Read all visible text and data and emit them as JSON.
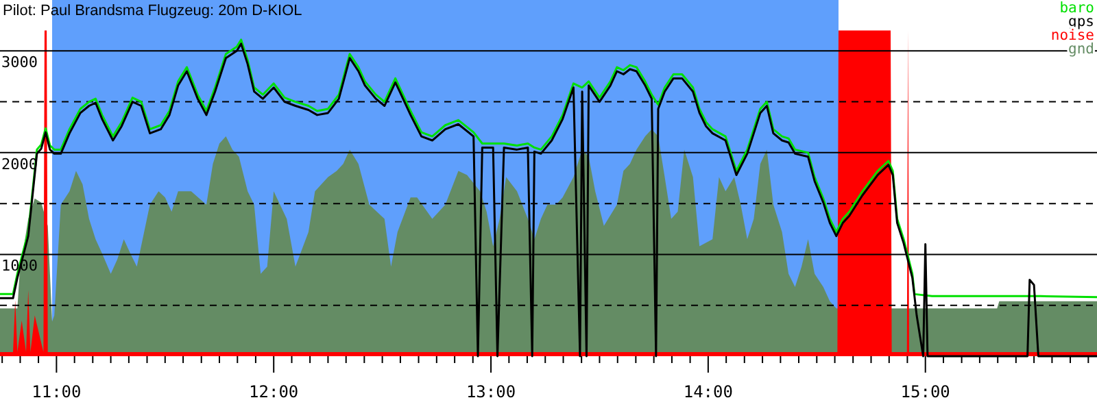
{
  "chart_data": {
    "type": "line",
    "title": "Pilot: Paul Brandsma Flugzeug: 20m D-KIOL",
    "x": [
      10.74,
      10.8,
      10.82,
      10.87,
      10.91,
      10.93,
      10.95,
      10.97,
      10.99,
      11.02,
      11.06,
      11.11,
      11.15,
      11.18,
      11.21,
      11.26,
      11.3,
      11.35,
      11.39,
      11.43,
      11.48,
      11.52,
      11.56,
      11.6,
      11.65,
      11.69,
      11.73,
      11.78,
      11.83,
      11.85,
      11.88,
      11.91,
      11.95,
      12.0,
      12.05,
      12.1,
      12.16,
      12.2,
      12.25,
      12.3,
      12.35,
      12.39,
      12.42,
      12.47,
      12.51,
      12.56,
      12.58,
      12.63,
      12.68,
      12.73,
      12.79,
      12.85,
      12.92,
      12.96,
      13.01,
      13.06,
      13.12,
      13.17,
      13.2,
      13.23,
      13.28,
      13.33,
      13.38,
      13.42,
      13.45,
      13.5,
      13.55,
      13.58,
      13.61,
      13.64,
      13.67,
      13.71,
      13.74,
      13.77,
      13.8,
      13.84,
      13.88,
      13.93,
      13.96,
      13.99,
      14.02,
      14.08,
      14.13,
      14.18,
      14.24,
      14.27,
      14.3,
      14.34,
      14.37,
      14.4,
      14.46,
      14.49,
      14.53,
      14.56,
      14.59,
      14.62,
      14.65,
      14.71,
      14.78,
      14.83,
      14.85,
      14.87,
      14.9,
      14.94,
      14.95,
      15.03,
      15.28,
      15.53,
      15.79
    ],
    "series": [
      {
        "name": "baro",
        "color": "#00e000",
        "values": [
          610,
          610,
          810,
          1220,
          2030,
          2080,
          2240,
          2070,
          2030,
          2030,
          2230,
          2430,
          2500,
          2530,
          2370,
          2160,
          2300,
          2540,
          2500,
          2230,
          2270,
          2410,
          2700,
          2840,
          2570,
          2410,
          2640,
          2970,
          3040,
          3110,
          2910,
          2640,
          2570,
          2680,
          2540,
          2500,
          2460,
          2410,
          2430,
          2570,
          2970,
          2840,
          2700,
          2570,
          2500,
          2730,
          2640,
          2410,
          2200,
          2160,
          2270,
          2320,
          2200,
          2090,
          2090,
          2090,
          2070,
          2090,
          2050,
          2030,
          2160,
          2370,
          2680,
          2640,
          2700,
          2540,
          2700,
          2840,
          2810,
          2860,
          2840,
          2700,
          2570,
          2470,
          2640,
          2770,
          2770,
          2640,
          2430,
          2300,
          2230,
          2160,
          1820,
          2030,
          2430,
          2500,
          2230,
          2160,
          2140,
          2030,
          2000,
          1760,
          1550,
          1350,
          1220,
          1350,
          1420,
          1620,
          1820,
          1920,
          1820,
          1350,
          1150,
          810,
          610,
          590,
          590,
          590,
          580
        ]
      },
      {
        "name": "gnd",
        "type": "area",
        "color": "#648c64",
        "x": [
          10.74,
          10.82,
          10.83,
          10.87,
          10.9,
          10.93,
          10.96,
          10.98,
          10.99,
          11.02,
          11.06,
          11.09,
          11.12,
          11.15,
          11.18,
          11.21,
          11.25,
          11.28,
          11.31,
          11.34,
          11.37,
          11.43,
          11.47,
          11.5,
          11.53,
          11.56,
          11.62,
          11.69,
          11.72,
          11.75,
          11.78,
          11.81,
          11.84,
          11.88,
          11.91,
          11.94,
          11.97,
          12.0,
          12.06,
          12.1,
          12.16,
          12.19,
          12.25,
          12.29,
          12.32,
          12.35,
          12.39,
          12.44,
          12.51,
          12.54,
          12.57,
          12.63,
          12.66,
          12.73,
          12.79,
          12.85,
          12.89,
          12.95,
          12.98,
          13.01,
          13.04,
          13.07,
          13.12,
          13.17,
          13.2,
          13.23,
          13.26,
          13.3,
          13.33,
          13.38,
          13.42,
          13.45,
          13.48,
          13.52,
          13.58,
          13.61,
          13.64,
          13.67,
          13.71,
          13.74,
          13.77,
          13.8,
          13.83,
          13.86,
          13.89,
          13.93,
          13.96,
          14.02,
          14.05,
          14.08,
          14.12,
          14.15,
          14.18,
          14.21,
          14.24,
          14.27,
          14.3,
          14.34,
          14.37,
          14.4,
          14.43,
          14.46,
          14.49,
          14.53,
          14.56,
          14.59,
          14.84,
          14.97,
          15.33,
          15.34,
          15.79
        ],
        "values": [
          470,
          470,
          810,
          1350,
          1550,
          1510,
          1280,
          340,
          400,
          1490,
          1620,
          1820,
          1690,
          1350,
          1150,
          1010,
          810,
          950,
          1150,
          1010,
          880,
          1490,
          1620,
          1560,
          1420,
          1620,
          1620,
          1490,
          1890,
          2090,
          2160,
          2030,
          1960,
          1620,
          1490,
          810,
          880,
          1620,
          1350,
          880,
          1220,
          1620,
          1760,
          1820,
          1890,
          2030,
          1890,
          1490,
          1350,
          880,
          1220,
          1560,
          1560,
          1350,
          1490,
          1820,
          1780,
          1620,
          1420,
          1080,
          1350,
          1760,
          1620,
          1350,
          1150,
          1350,
          1490,
          1490,
          1560,
          1760,
          2030,
          1960,
          1620,
          1280,
          1490,
          1820,
          1890,
          2030,
          2160,
          2230,
          2160,
          1760,
          1350,
          1420,
          2030,
          1760,
          1080,
          1150,
          1760,
          1620,
          1760,
          1490,
          1150,
          1350,
          1890,
          2030,
          1490,
          1220,
          810,
          680,
          880,
          1150,
          810,
          680,
          540,
          470,
          470,
          470,
          470,
          540,
          540
        ]
      },
      {
        "name": "noise",
        "type": "area",
        "color": "#ff0000",
        "x": [
          10.74,
          10.8,
          10.81,
          10.82,
          10.84,
          10.86,
          10.87,
          10.88,
          10.9,
          10.94,
          10.945,
          10.95,
          10.955,
          10.96,
          14.595,
          14.6,
          14.84,
          14.845,
          14.915,
          14.92,
          14.925,
          15.79
        ],
        "values": [
          40,
          40,
          550,
          40,
          350,
          40,
          650,
          40,
          400,
          40,
          3200,
          3200,
          3200,
          40,
          40,
          3200,
          3200,
          40,
          40,
          3200,
          40,
          40
        ]
      },
      {
        "name": "gps",
        "color": "#000000",
        "x": [
          10.74,
          10.8,
          10.82,
          10.87,
          10.91,
          10.93,
          10.95,
          10.97,
          10.99,
          11.02,
          11.06,
          11.11,
          11.15,
          11.18,
          11.21,
          11.26,
          11.3,
          11.35,
          11.39,
          11.43,
          11.48,
          11.52,
          11.56,
          11.6,
          11.65,
          11.69,
          11.73,
          11.78,
          11.83,
          11.85,
          11.88,
          11.91,
          11.95,
          12.0,
          12.05,
          12.1,
          12.16,
          12.2,
          12.25,
          12.3,
          12.35,
          12.39,
          12.42,
          12.47,
          12.51,
          12.56,
          12.58,
          12.63,
          12.68,
          12.73,
          12.79,
          12.85,
          12.92,
          12.94,
          12.96,
          13.01,
          13.03,
          13.06,
          13.12,
          13.17,
          13.19,
          13.2,
          13.23,
          13.28,
          13.33,
          13.38,
          13.41,
          13.42,
          13.44,
          13.45,
          13.5,
          13.55,
          13.58,
          13.61,
          13.64,
          13.67,
          13.71,
          13.74,
          13.76,
          13.77,
          13.8,
          13.84,
          13.88,
          13.93,
          13.96,
          13.99,
          14.02,
          14.08,
          14.13,
          14.18,
          14.24,
          14.27,
          14.3,
          14.34,
          14.37,
          14.4,
          14.46,
          14.49,
          14.53,
          14.56,
          14.59,
          14.62,
          14.65,
          14.71,
          14.78,
          14.83,
          14.85,
          14.87,
          14.9,
          14.94,
          14.96,
          14.99,
          15.0,
          15.01,
          15.47,
          15.48,
          15.5,
          15.52,
          15.79
        ],
        "values": [
          570,
          570,
          770,
          1180,
          1990,
          2040,
          2200,
          2030,
          1990,
          1990,
          2190,
          2390,
          2460,
          2490,
          2330,
          2120,
          2260,
          2500,
          2460,
          2190,
          2230,
          2370,
          2660,
          2800,
          2530,
          2370,
          2600,
          2930,
          3000,
          3070,
          2870,
          2600,
          2530,
          2640,
          2500,
          2460,
          2420,
          2370,
          2390,
          2530,
          2930,
          2800,
          2660,
          2530,
          2460,
          2690,
          2600,
          2370,
          2160,
          2120,
          2230,
          2280,
          2160,
          0,
          2050,
          2050,
          0,
          2050,
          2030,
          2050,
          0,
          2010,
          1990,
          2120,
          2330,
          2640,
          0,
          2600,
          0,
          2660,
          2500,
          2660,
          2800,
          2770,
          2820,
          2800,
          2660,
          2530,
          0,
          2430,
          2600,
          2730,
          2730,
          2600,
          2390,
          2260,
          2190,
          2120,
          1780,
          1990,
          2390,
          2460,
          2190,
          2120,
          2100,
          1990,
          1960,
          1720,
          1510,
          1310,
          1180,
          1310,
          1380,
          1580,
          1780,
          1880,
          1780,
          1310,
          1110,
          770,
          400,
          0,
          1100,
          0,
          0,
          750,
          700,
          0,
          0
        ]
      }
    ],
    "bands": [
      {
        "axis": "x",
        "from": 10.98,
        "to": 14.6,
        "color": "#5f9ffc"
      }
    ],
    "xlim": [
      10.74,
      15.79
    ],
    "xticks": [
      {
        "value": 10.75,
        "label": null
      },
      {
        "value": 10.833,
        "label": null
      },
      {
        "value": 10.917,
        "label": null
      },
      {
        "value": 11,
        "label": "11:00"
      },
      {
        "value": 11.083,
        "label": null
      },
      {
        "value": 11.167,
        "label": null
      },
      {
        "value": 11.25,
        "label": null
      },
      {
        "value": 11.333,
        "label": null
      },
      {
        "value": 11.417,
        "label": null
      },
      {
        "value": 11.5,
        "label": null
      },
      {
        "value": 11.583,
        "label": null
      },
      {
        "value": 11.667,
        "label": null
      },
      {
        "value": 11.75,
        "label": null
      },
      {
        "value": 11.833,
        "label": null
      },
      {
        "value": 11.917,
        "label": null
      },
      {
        "value": 12,
        "label": "12:00"
      },
      {
        "value": 12.083,
        "label": null
      },
      {
        "value": 12.167,
        "label": null
      },
      {
        "value": 12.25,
        "label": null
      },
      {
        "value": 12.333,
        "label": null
      },
      {
        "value": 12.417,
        "label": null
      },
      {
        "value": 12.5,
        "label": null
      },
      {
        "value": 12.583,
        "label": null
      },
      {
        "value": 12.667,
        "label": null
      },
      {
        "value": 12.75,
        "label": null
      },
      {
        "value": 12.833,
        "label": null
      },
      {
        "value": 12.917,
        "label": null
      },
      {
        "value": 13,
        "label": "13:00"
      },
      {
        "value": 13.083,
        "label": null
      },
      {
        "value": 13.167,
        "label": null
      },
      {
        "value": 13.25,
        "label": null
      },
      {
        "value": 13.333,
        "label": null
      },
      {
        "value": 13.417,
        "label": null
      },
      {
        "value": 13.5,
        "label": null
      },
      {
        "value": 13.583,
        "label": null
      },
      {
        "value": 13.667,
        "label": null
      },
      {
        "value": 13.75,
        "label": null
      },
      {
        "value": 13.833,
        "label": null
      },
      {
        "value": 13.917,
        "label": null
      },
      {
        "value": 14,
        "label": "14:00"
      },
      {
        "value": 14.083,
        "label": null
      },
      {
        "value": 14.167,
        "label": null
      },
      {
        "value": 14.25,
        "label": null
      },
      {
        "value": 14.333,
        "label": null
      },
      {
        "value": 14.417,
        "label": null
      },
      {
        "value": 14.5,
        "label": null
      },
      {
        "value": 14.583,
        "label": null
      },
      {
        "value": 14.667,
        "label": null
      },
      {
        "value": 14.75,
        "label": null
      },
      {
        "value": 14.833,
        "label": null
      },
      {
        "value": 14.917,
        "label": null
      },
      {
        "value": 15,
        "label": "15:00"
      },
      {
        "value": 15.083,
        "label": null
      },
      {
        "value": 15.167,
        "label": null
      },
      {
        "value": 15.25,
        "label": null
      },
      {
        "value": 15.333,
        "label": null
      },
      {
        "value": 15.417,
        "label": null
      },
      {
        "value": 15.5,
        "label": null
      },
      {
        "value": 15.583,
        "label": null
      },
      {
        "value": 15.667,
        "label": null
      },
      {
        "value": 15.75,
        "label": null
      }
    ],
    "ylim": [
      0,
      3500
    ],
    "yticks": [
      {
        "value": 500,
        "label": null
      },
      1000,
      {
        "value": 1500,
        "label": null
      },
      2000,
      {
        "value": 2500,
        "label": null
      },
      3000
    ],
    "grid": "y",
    "legend": "top right"
  }
}
